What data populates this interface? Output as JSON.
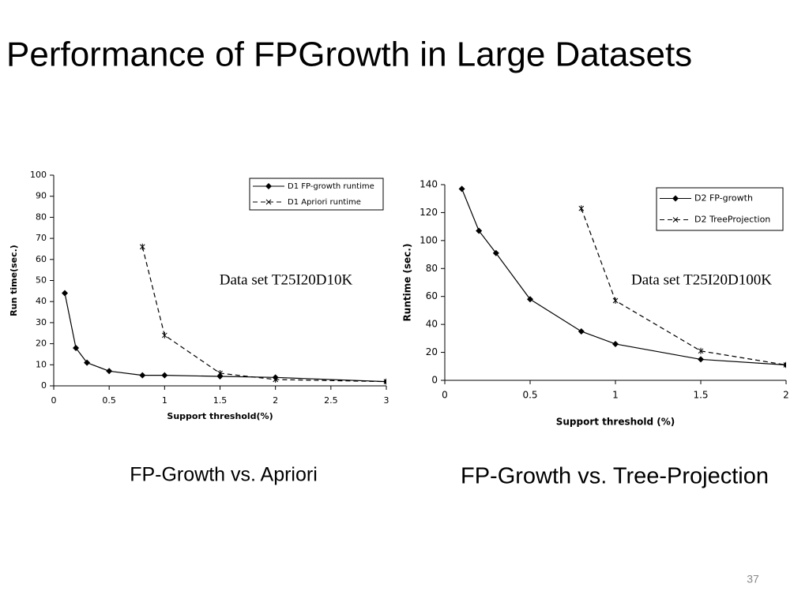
{
  "title": "Performance of FPGrowth in Large Datasets",
  "captions": [
    "FP-Growth vs. Apriori",
    "FP-Growth vs. Tree-Projection"
  ],
  "page_number": "37",
  "chart_data": [
    {
      "type": "line",
      "annotation": "Data set T25I20D10K",
      "x_label": "Support threshold(%)",
      "y_label": "Run time(sec.)",
      "xlim": [
        0,
        3
      ],
      "xticks": [
        0,
        0.5,
        1,
        1.5,
        2,
        2.5,
        3
      ],
      "ylim": [
        0,
        100
      ],
      "yticks": [
        0,
        10,
        20,
        30,
        40,
        50,
        60,
        70,
        80,
        90,
        100
      ],
      "legend": "upper right",
      "series": [
        {
          "name": "D1 FP-growth runtime",
          "color": "#000000",
          "line_style": "solid",
          "marker": "diamond",
          "x": [
            0.1,
            0.2,
            0.3,
            0.5,
            0.8,
            1,
            1.5,
            2,
            3
          ],
          "values": [
            44,
            18,
            11,
            7,
            5,
            5,
            4.5,
            4,
            2
          ]
        },
        {
          "name": "D1 Apriori runtime",
          "color": "#000000",
          "line_style": "dashed",
          "marker": "star",
          "x": [
            0.8,
            1,
            1.5,
            2,
            3
          ],
          "values": [
            66,
            24,
            6,
            3,
            2
          ]
        }
      ]
    },
    {
      "type": "line",
      "annotation": "Data set T25I20D100K",
      "x_label": "Support threshold (%)",
      "y_label": "Runtime (sec.)",
      "xlim": [
        0,
        2
      ],
      "xticks": [
        0,
        0.5,
        1,
        1.5,
        2
      ],
      "ylim": [
        0,
        140
      ],
      "yticks": [
        0,
        20,
        40,
        60,
        80,
        100,
        120,
        140
      ],
      "legend": "upper right",
      "series": [
        {
          "name": "D2 FP-growth",
          "color": "#000000",
          "line_style": "solid",
          "marker": "diamond",
          "x": [
            0.1,
            0.2,
            0.3,
            0.5,
            0.8,
            1,
            1.5,
            2
          ],
          "values": [
            137,
            107,
            91,
            58,
            35,
            26,
            15,
            11
          ]
        },
        {
          "name": "D2 TreeProjection",
          "color": "#000000",
          "line_style": "dashed",
          "marker": "star",
          "x": [
            0.8,
            1,
            1.5,
            2
          ],
          "values": [
            123,
            57,
            21,
            11
          ]
        }
      ]
    }
  ]
}
